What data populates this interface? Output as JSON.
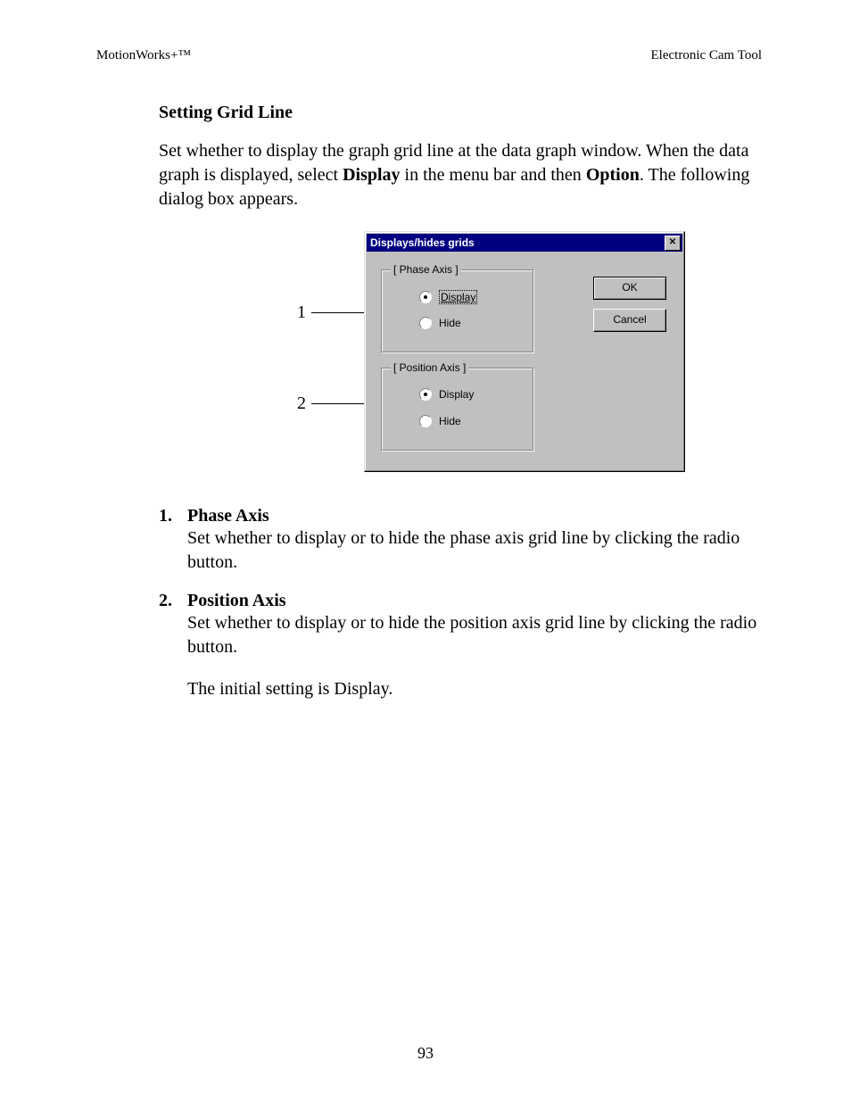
{
  "header": {
    "left": "MotionWorks+™",
    "right": "Electronic Cam Tool"
  },
  "section_heading": "Setting Grid Line",
  "intro": {
    "part1": "Set whether to display the graph grid line at the data graph window.  When the data graph is displayed, select ",
    "bold1": "Display",
    "part2": " in the menu bar and then ",
    "bold2": "Option",
    "part3": ". The following dialog box appears."
  },
  "dialog": {
    "title": "Displays/hides grids",
    "close_glyph": "✕",
    "group1": {
      "legend": "[ Phase Axis ]",
      "option_display": "Display",
      "option_hide": "Hide",
      "selected": "display"
    },
    "group2": {
      "legend": "[ Position Axis ]",
      "option_display": "Display",
      "option_hide": "Hide",
      "selected": "display"
    },
    "ok_label": "OK",
    "cancel_label": "Cancel"
  },
  "callouts": {
    "one": "1",
    "two": "2"
  },
  "list": {
    "item1": {
      "num": "1.",
      "heading": "Phase Axis",
      "body": "Set whether to display or to hide the phase axis grid line by clicking the radio button."
    },
    "item2": {
      "num": "2.",
      "heading": "Position Axis",
      "body": "Set whether to display or to hide the position axis grid line by clicking the radio button."
    }
  },
  "trailing": "The initial setting is Display.",
  "page_number": "93"
}
